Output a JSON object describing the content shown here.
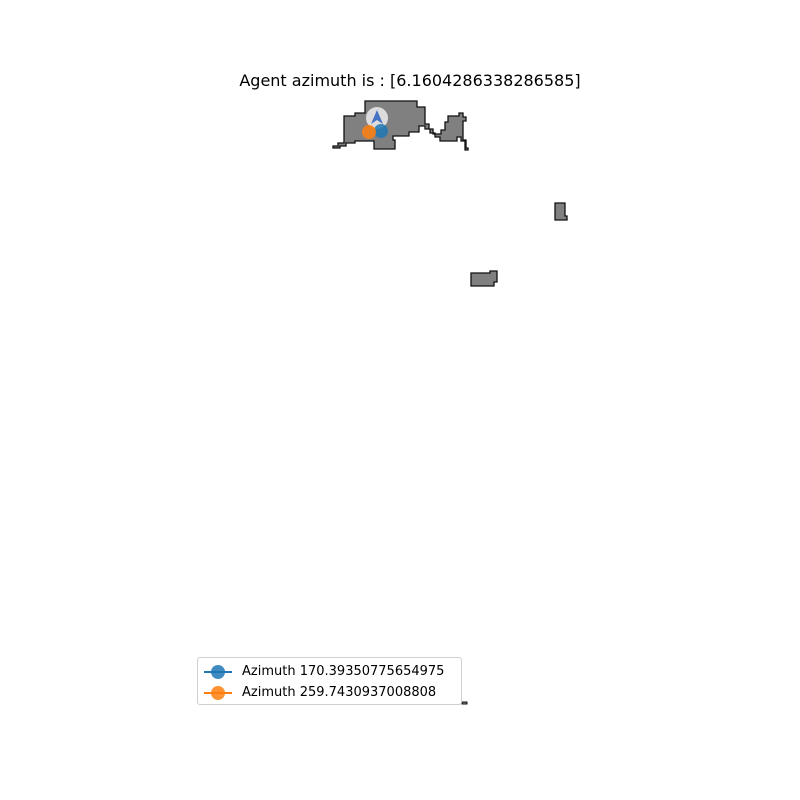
{
  "title": "Agent azimuth is : [6.1604286338286585]",
  "colors": {
    "region_fill": "#808080",
    "region_stroke": "#111111",
    "series_blue": "#1f77b4",
    "series_orange": "#ff7f0e",
    "agent_marker": "#4472c4",
    "agent_halo": "#e6e6e6"
  },
  "legend": {
    "entries": [
      {
        "label": "Azimuth 170.39350775654975",
        "color": "#1f77b4"
      },
      {
        "label": "Azimuth 259.7430937008808",
        "color": "#ff7f0e"
      }
    ]
  },
  "map": {
    "agent_marker_icon": "agent-arrow-icon",
    "point_marker_icon": "circle-marker-icon"
  }
}
